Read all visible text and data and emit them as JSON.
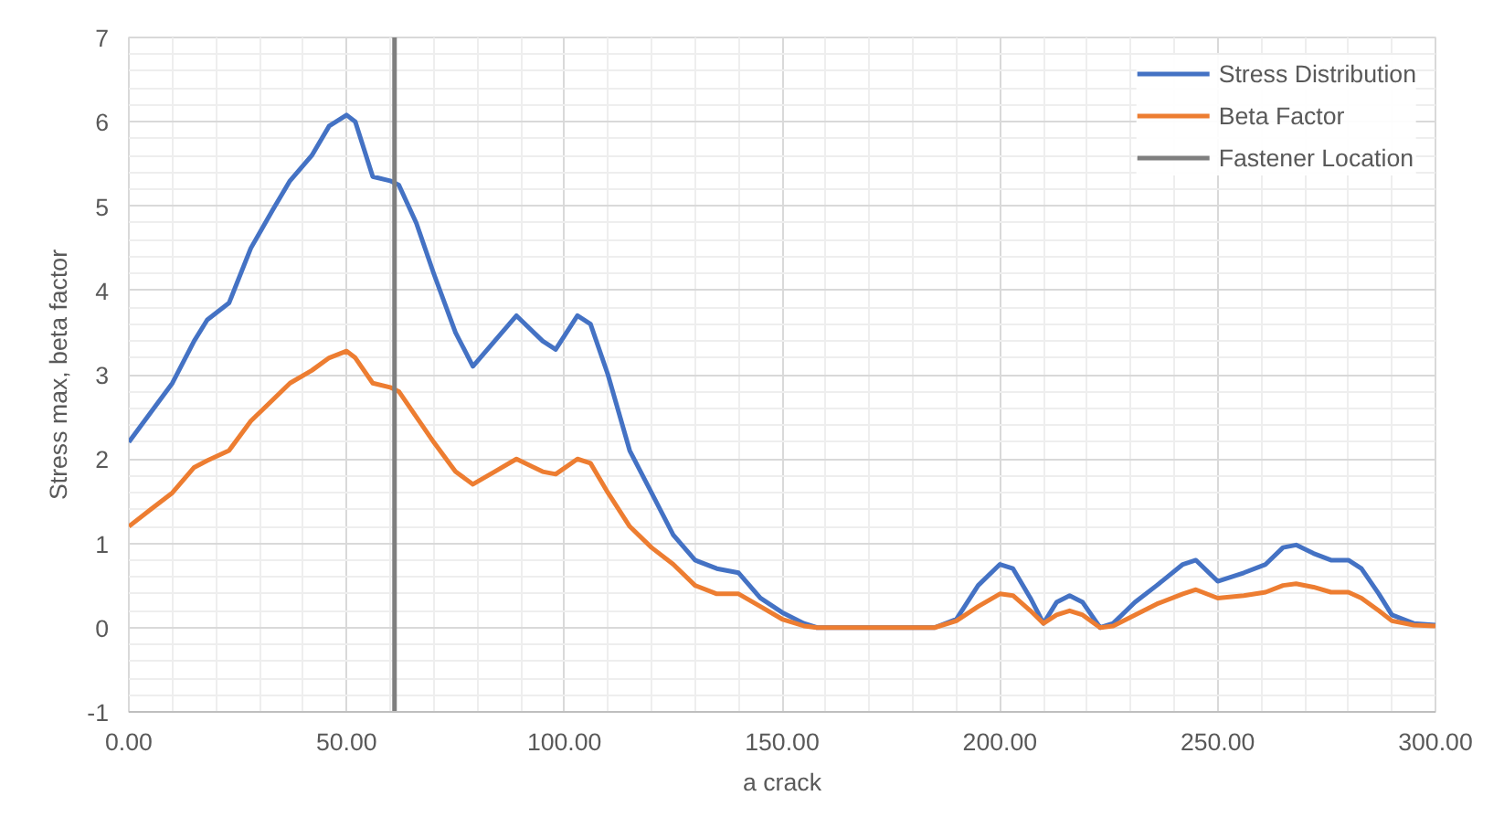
{
  "chart_data": {
    "type": "line",
    "xlabel": "a crack",
    "ylabel": "Stress max, beta factor",
    "series": [
      {
        "name": "Stress Distribution",
        "color": "#4472c4",
        "x": [
          0,
          5,
          10,
          15,
          18,
          23,
          28,
          33,
          37,
          42,
          46,
          50,
          52,
          56,
          60,
          62,
          66,
          70,
          75,
          79,
          84,
          89,
          95,
          98,
          103,
          106,
          110,
          115,
          120,
          125,
          130,
          135,
          140,
          145,
          150,
          155,
          158,
          185,
          190,
          195,
          200,
          203,
          207,
          210,
          213,
          216,
          219,
          223,
          226,
          231,
          236,
          242,
          245,
          250,
          256,
          261,
          265,
          268,
          272,
          276,
          280,
          283,
          287,
          290,
          295,
          300
        ],
        "values": [
          2.2,
          2.55,
          2.9,
          3.4,
          3.65,
          3.85,
          4.5,
          4.95,
          5.3,
          5.6,
          5.95,
          6.08,
          6.0,
          5.35,
          5.3,
          5.25,
          4.8,
          4.2,
          3.5,
          3.1,
          3.4,
          3.7,
          3.4,
          3.3,
          3.7,
          3.6,
          3.0,
          2.1,
          1.6,
          1.1,
          0.8,
          0.7,
          0.65,
          0.35,
          0.18,
          0.05,
          0,
          0,
          0.1,
          0.5,
          0.75,
          0.7,
          0.35,
          0.05,
          0.3,
          0.38,
          0.3,
          0.0,
          0.05,
          0.3,
          0.5,
          0.75,
          0.8,
          0.55,
          0.65,
          0.75,
          0.95,
          0.98,
          0.88,
          0.8,
          0.8,
          0.7,
          0.4,
          0.15,
          0.05,
          0.03
        ]
      },
      {
        "name": "Beta Factor",
        "color": "#ed7d31",
        "x": [
          0,
          5,
          10,
          15,
          18,
          23,
          28,
          33,
          37,
          42,
          46,
          50,
          52,
          56,
          60,
          62,
          66,
          70,
          75,
          79,
          84,
          89,
          95,
          98,
          103,
          106,
          110,
          115,
          120,
          125,
          130,
          135,
          140,
          145,
          150,
          155,
          158,
          185,
          190,
          195,
          200,
          203,
          207,
          210,
          213,
          216,
          219,
          223,
          226,
          231,
          236,
          242,
          245,
          250,
          256,
          261,
          265,
          268,
          272,
          276,
          280,
          283,
          287,
          290,
          295,
          300
        ],
        "values": [
          1.2,
          1.4,
          1.6,
          1.9,
          1.98,
          2.1,
          2.45,
          2.7,
          2.9,
          3.05,
          3.2,
          3.28,
          3.2,
          2.9,
          2.85,
          2.8,
          2.5,
          2.2,
          1.85,
          1.7,
          1.85,
          2.0,
          1.85,
          1.82,
          2.0,
          1.95,
          1.6,
          1.2,
          0.95,
          0.75,
          0.5,
          0.4,
          0.4,
          0.25,
          0.1,
          0.02,
          0,
          0,
          0.08,
          0.25,
          0.4,
          0.38,
          0.2,
          0.05,
          0.15,
          0.2,
          0.15,
          0.0,
          0.02,
          0.15,
          0.28,
          0.4,
          0.45,
          0.35,
          0.38,
          0.42,
          0.5,
          0.52,
          0.48,
          0.42,
          0.42,
          0.35,
          0.2,
          0.08,
          0.03,
          0.02
        ]
      },
      {
        "name": "Fastener Location",
        "color": "#7f7f7f",
        "x": [
          61,
          61
        ],
        "values": [
          -1,
          7
        ]
      }
    ],
    "xlim": [
      0,
      300
    ],
    "ylim": [
      -1,
      7
    ],
    "xticks": [
      {
        "value": 0,
        "label": "0.00"
      },
      {
        "value": 50,
        "label": "50.00"
      },
      {
        "value": 100,
        "label": "100.00"
      },
      {
        "value": 150,
        "label": "150.00"
      },
      {
        "value": 200,
        "label": "200.00"
      },
      {
        "value": 250,
        "label": "250.00"
      },
      {
        "value": 300,
        "label": "300.00"
      }
    ],
    "yticks": [
      -1,
      0,
      1,
      2,
      3,
      4,
      5,
      6,
      7
    ],
    "grid": true,
    "legend": "top right",
    "marker": "none",
    "line_style": "solid"
  }
}
